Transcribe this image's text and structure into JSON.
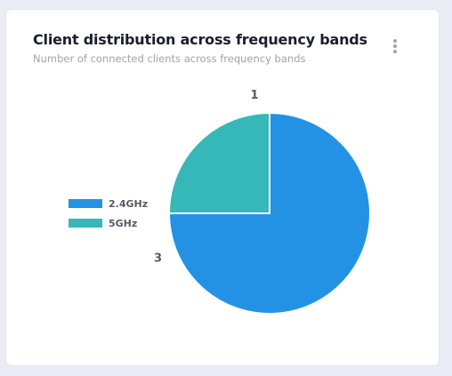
{
  "card": {
    "title": "Client distribution across frequency bands",
    "subtitle": "Number of connected clients across frequency bands"
  },
  "colors": {
    "series_2_4ghz": "#2492e4",
    "series_5ghz": "#35b8b7",
    "page_background": "#e9ebf5"
  },
  "menu": {
    "icon": "more-vertical-icon"
  },
  "chart_data": {
    "type": "pie",
    "categories": [
      "2.4GHz",
      "5GHz"
    ],
    "values": [
      3,
      1
    ],
    "colors": [
      "#2492e4",
      "#35b8b7"
    ],
    "legend": "left",
    "data_labels": [
      "3",
      "1"
    ]
  }
}
